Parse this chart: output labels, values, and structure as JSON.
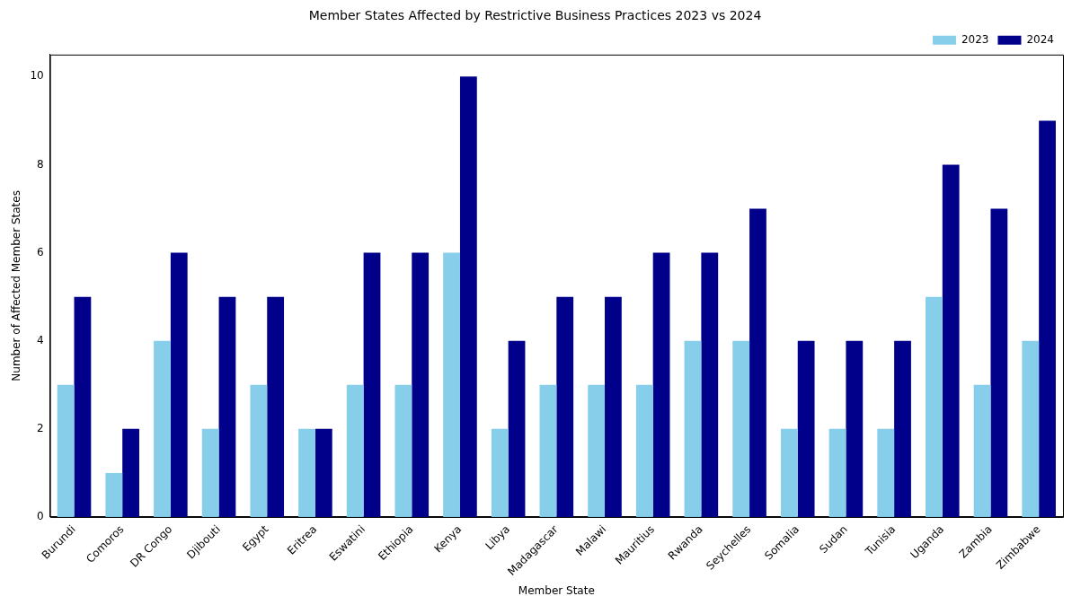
{
  "chart_data": {
    "type": "bar",
    "title": "Member States Affected by Restrictive Business Practices 2023 vs 2024",
    "xlabel": "Member State",
    "ylabel": "Number of Affected Member States",
    "categories": [
      "Burundi",
      "Comoros",
      "DR Congo",
      "Djibouti",
      "Egypt",
      "Eritrea",
      "Eswatini",
      "Ethiopia",
      "Kenya",
      "Libya",
      "Madagascar",
      "Malawi",
      "Mauritius",
      "Rwanda",
      "Seychelles",
      "Somalia",
      "Sudan",
      "Tunisia",
      "Uganda",
      "Zambia",
      "Zimbabwe"
    ],
    "series": [
      {
        "name": "2023",
        "color": "#87ceeb",
        "values": [
          3,
          1,
          4,
          2,
          3,
          2,
          3,
          3,
          6,
          2,
          3,
          3,
          3,
          4,
          4,
          2,
          2,
          2,
          5,
          3,
          4
        ]
      },
      {
        "name": "2024",
        "color": "#00008b",
        "values": [
          5,
          2,
          6,
          5,
          5,
          2,
          6,
          6,
          10,
          4,
          5,
          5,
          6,
          6,
          7,
          4,
          4,
          4,
          8,
          7,
          9
        ]
      }
    ],
    "ylim": [
      0,
      10.5
    ],
    "yticks": [
      0,
      2,
      4,
      6,
      8,
      10
    ],
    "grid": false,
    "legend": "top right"
  }
}
